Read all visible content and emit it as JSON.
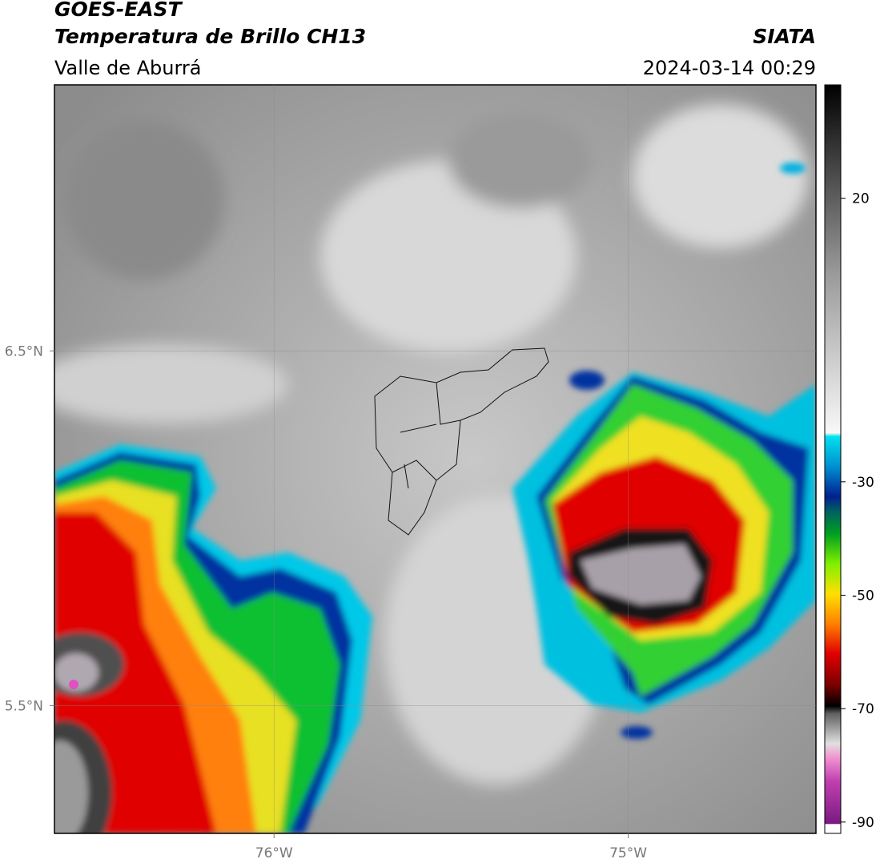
{
  "header": {
    "title": "GOES-EAST",
    "subtitle": "Temperatura de Brillo CH13",
    "region": "Valle de Aburrá",
    "source": "SIATA",
    "timestamp": "2024-03-14 00:29"
  },
  "map": {
    "lonlim": [
      -76.62,
      -74.47
    ],
    "latlim": [
      5.14,
      7.25
    ],
    "lonticks": [
      {
        "value": -76,
        "label": "76°W"
      },
      {
        "value": -75,
        "label": "75°W"
      }
    ],
    "latticks": [
      {
        "value": 6.5,
        "label": "6.5°N"
      },
      {
        "value": 5.5,
        "label": "5.5°N"
      }
    ]
  },
  "colorbar": {
    "lim": [
      -92,
      40
    ],
    "ticks": [
      -90,
      -70,
      -50,
      -30,
      20
    ]
  }
}
